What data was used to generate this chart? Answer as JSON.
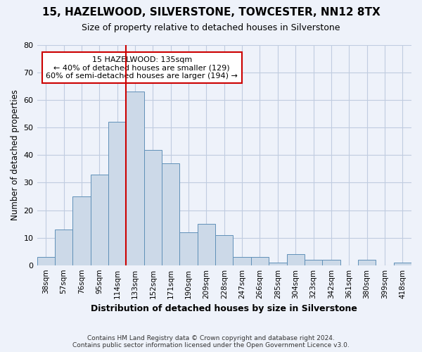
{
  "title": "15, HAZELWOOD, SILVERSTONE, TOWCESTER, NN12 8TX",
  "subtitle": "Size of property relative to detached houses in Silverstone",
  "xlabel": "Distribution of detached houses by size in Silverstone",
  "ylabel": "Number of detached properties",
  "categories": [
    "38sqm",
    "57sqm",
    "76sqm",
    "95sqm",
    "114sqm",
    "133sqm",
    "152sqm",
    "171sqm",
    "190sqm",
    "209sqm",
    "228sqm",
    "247sqm",
    "266sqm",
    "285sqm",
    "304sqm",
    "323sqm",
    "342sqm",
    "361sqm",
    "380sqm",
    "399sqm",
    "418sqm"
  ],
  "values": [
    3,
    13,
    25,
    33,
    52,
    63,
    42,
    37,
    12,
    15,
    11,
    3,
    3,
    1,
    4,
    2,
    2,
    0,
    2,
    0,
    1
  ],
  "bar_color": "#ccd9e8",
  "bar_edge_color": "#6090b8",
  "red_line_index": 5,
  "red_line_color": "#cc0000",
  "annotation_line1": "15 HAZELWOOD: 135sqm",
  "annotation_line2": "← 40% of detached houses are smaller (129)",
  "annotation_line3": "60% of semi-detached houses are larger (194) →",
  "annotation_box_color": "#ffffff",
  "annotation_box_edge": "#cc0000",
  "ylim": [
    0,
    80
  ],
  "yticks": [
    0,
    10,
    20,
    30,
    40,
    50,
    60,
    70,
    80
  ],
  "grid_color": "#c0cce0",
  "footer_line1": "Contains HM Land Registry data © Crown copyright and database right 2024.",
  "footer_line2": "Contains public sector information licensed under the Open Government Licence v3.0.",
  "background_color": "#eef2fa",
  "plot_bg_color": "#eef2fa"
}
